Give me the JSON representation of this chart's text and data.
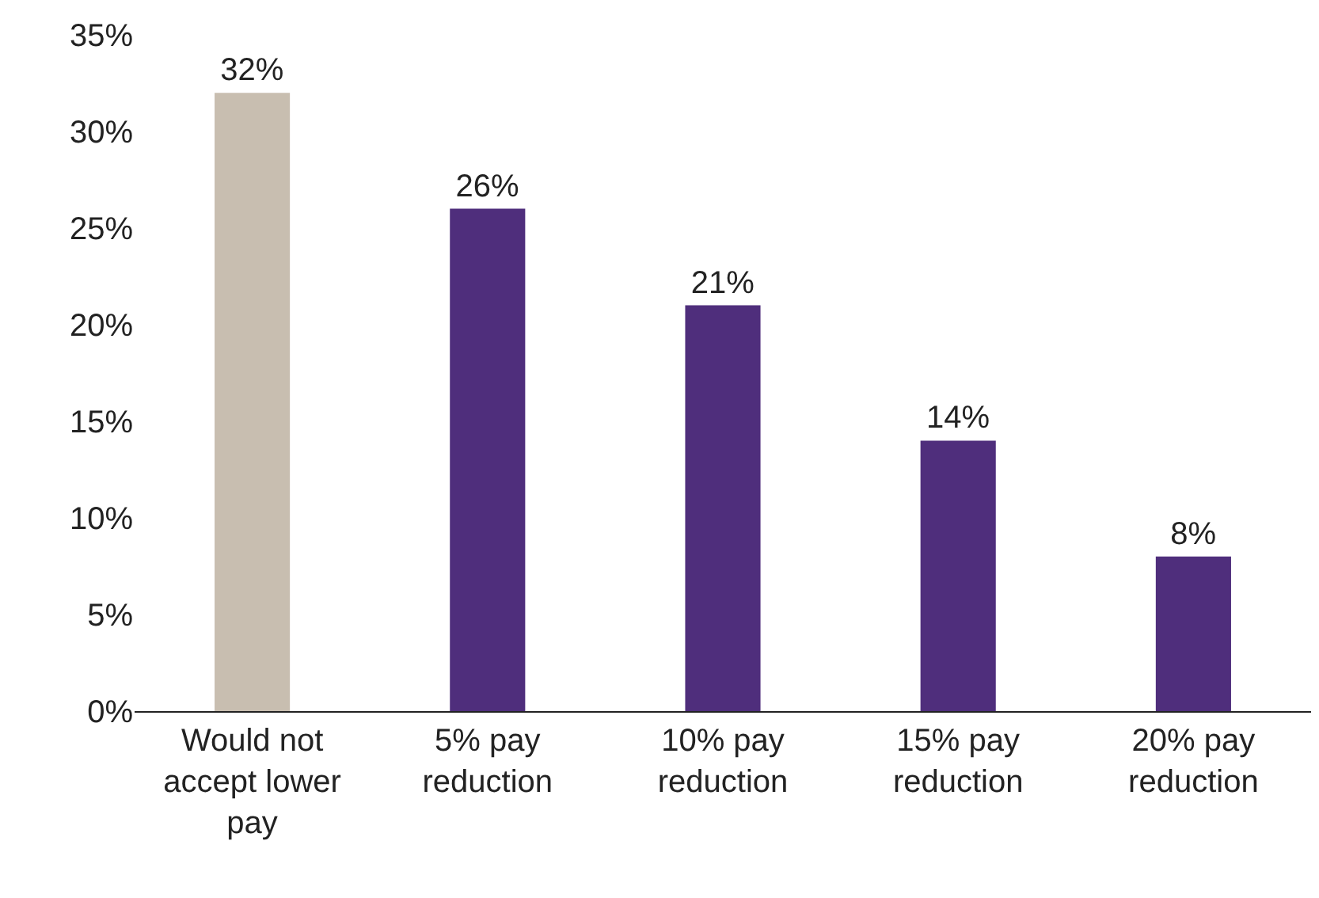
{
  "chart_data": {
    "type": "bar",
    "categories": [
      "Would not accept lower pay",
      "5% pay reduction",
      "10% pay reduction",
      "15% pay reduction",
      "20% pay reduction"
    ],
    "values": [
      32,
      26,
      21,
      14,
      8
    ],
    "value_labels": [
      "32%",
      "26%",
      "21%",
      "14%",
      "8%"
    ],
    "colors": [
      "#c8beb0",
      "#4f2e7c",
      "#4f2e7c",
      "#4f2e7c",
      "#4f2e7c"
    ],
    "ylim": [
      0,
      35
    ],
    "yticks": [
      {
        "value": 0,
        "label": "0%"
      },
      {
        "value": 5,
        "label": "5%"
      },
      {
        "value": 10,
        "label": "10%"
      },
      {
        "value": 15,
        "label": "15%"
      },
      {
        "value": 20,
        "label": "20%"
      },
      {
        "value": 25,
        "label": "25%"
      },
      {
        "value": 30,
        "label": "30%"
      },
      {
        "value": 35,
        "label": "35%"
      }
    ]
  }
}
